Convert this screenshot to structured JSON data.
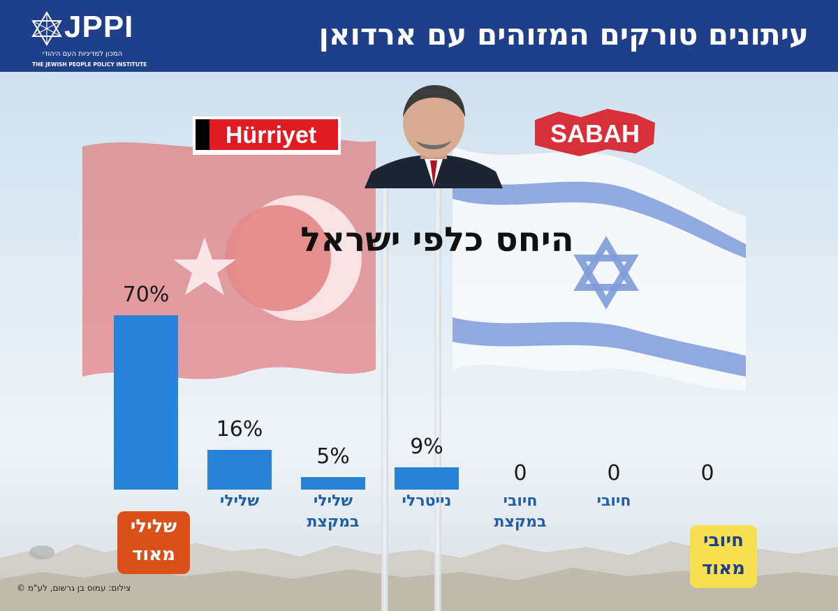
{
  "header": {
    "title": "עיתונים טורקים המזוהים עם ארדואן",
    "logo": {
      "text": "JPPI",
      "sub_he": "המכון למדיניות העם היהודי",
      "sub_en": "THE JEWISH PEOPLE POLICY INSTITUTE",
      "icon": "star-of-david-icon"
    },
    "color": "#1f3f8a"
  },
  "logos": {
    "left_newspaper": "Hürriyet",
    "right_newspaper": "SABAH"
  },
  "badges": {
    "very_negative": [
      "שלילי",
      "מאוד"
    ],
    "very_positive": [
      "חיובי",
      "מאוד"
    ],
    "very_negative_color": "#d9501a",
    "very_positive_color": "#f7e04f"
  },
  "credit": "צילום: עמוס בן גרשום, לע\"מ ©",
  "colors": {
    "bar": "#2783d8",
    "category_text": "#1f5fa8"
  },
  "chart_data": {
    "type": "bar",
    "title": "היחס כלפי ישראל",
    "categories": [
      "שלילי מאוד",
      "שלילי",
      "שלילי במקצת",
      "נייטרלי",
      "חיובי במקצת",
      "חיובי",
      "חיובי מאוד"
    ],
    "category_labels": [
      [],
      [
        "שלילי"
      ],
      [
        "שלילי",
        "במקצת"
      ],
      [
        "נייטרלי"
      ],
      [
        "חיובי",
        "במקצת"
      ],
      [
        "חיובי"
      ],
      []
    ],
    "values": [
      70,
      16,
      5,
      9,
      0,
      0,
      0
    ],
    "value_labels": [
      "70%",
      "16%",
      "5%",
      "9%",
      "0",
      "0",
      "0"
    ],
    "ylim": [
      0,
      70
    ],
    "grid": false,
    "legend": "none"
  }
}
